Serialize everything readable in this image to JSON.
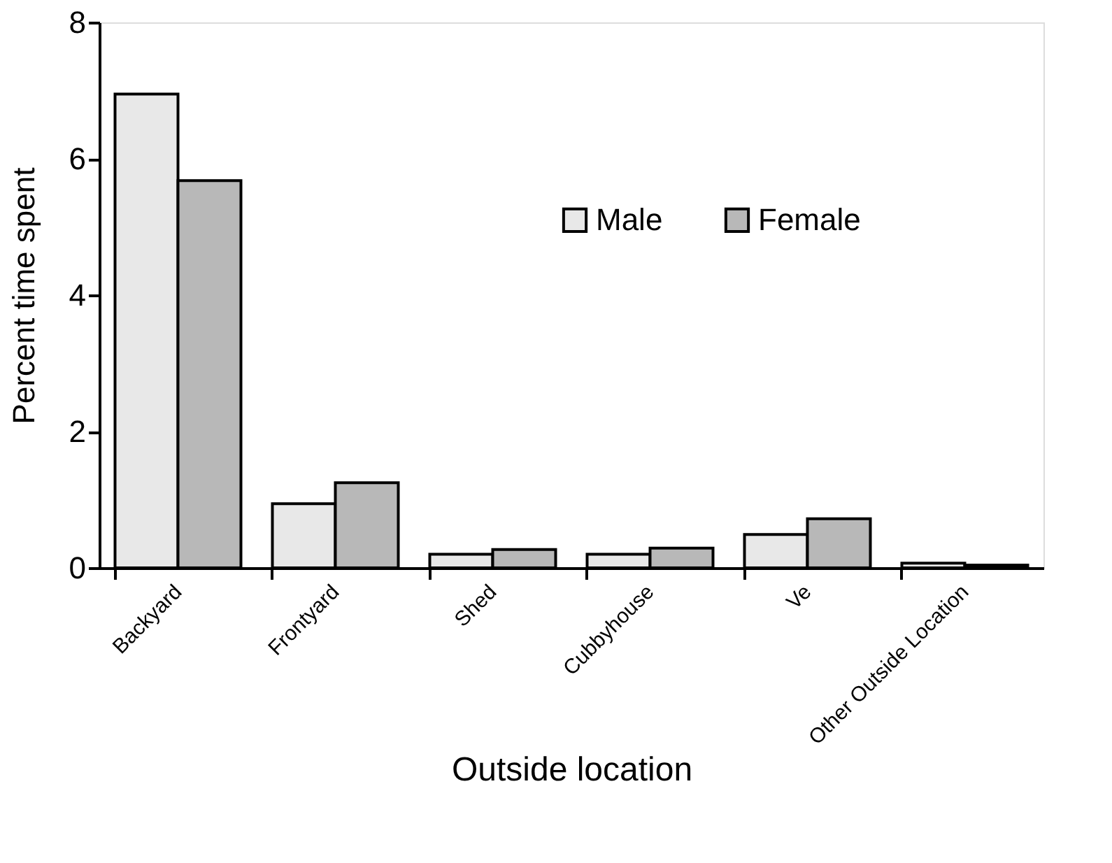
{
  "chart_data": {
    "type": "bar",
    "xlabel": "Outside location",
    "ylabel": "Percent time spent",
    "categories": [
      "Backyard",
      "Frontyard",
      "Shed",
      "Cubbyhouse",
      "Ve",
      "Other Outside Location"
    ],
    "series": [
      {
        "name": "Male",
        "color": "#e8e8e8",
        "values": [
          6.95,
          0.94,
          0.2,
          0.2,
          0.49,
          0.07
        ]
      },
      {
        "name": "Female",
        "color": "#b8b8b8",
        "values": [
          5.68,
          1.25,
          0.27,
          0.29,
          0.72,
          0.04
        ]
      }
    ],
    "ylim": [
      0,
      8
    ],
    "yticks": [
      0,
      2,
      4,
      6,
      8
    ],
    "grid": false,
    "legend": "top right"
  }
}
